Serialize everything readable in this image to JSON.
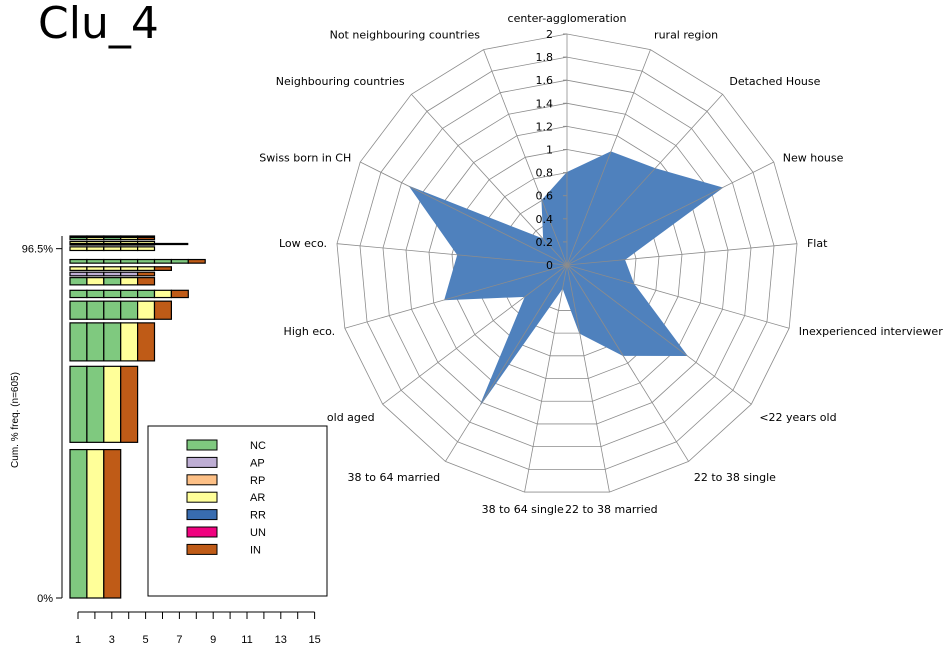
{
  "title": "Clu_4",
  "chart_data": [
    {
      "type": "bar",
      "subtype": "sequence-index-plot",
      "ylabel": "Cum. % freq. (n=605)",
      "y_ticks": [
        "0%",
        "96.5%"
      ],
      "x_ticks": [
        "1",
        "3",
        "5",
        "7",
        "9",
        "11",
        "13",
        "15"
      ],
      "xlim": [
        0,
        15
      ],
      "legend": {
        "placement": "bottom-right",
        "entries": [
          {
            "code": "NC",
            "color": "#7fc97f"
          },
          {
            "code": "AP",
            "color": "#beaed4"
          },
          {
            "code": "RP",
            "color": "#fdc086"
          },
          {
            "code": "AR",
            "color": "#ffff99"
          },
          {
            "code": "RR",
            "color": "#386cb0"
          },
          {
            "code": "UN",
            "color": "#f0027f"
          },
          {
            "code": "IN",
            "color": "#bf5b17"
          }
        ]
      },
      "sequences": [
        {
          "cum_from": 0.0,
          "cum_to": 41.0,
          "states": [
            "NC",
            "AR",
            "IN"
          ]
        },
        {
          "cum_from": 43.0,
          "cum_to": 64.0,
          "states": [
            "NC",
            "NC",
            "AR",
            "IN"
          ]
        },
        {
          "cum_from": 65.5,
          "cum_to": 76.0,
          "states": [
            "NC",
            "NC",
            "NC",
            "AR",
            "IN"
          ]
        },
        {
          "cum_from": 77.0,
          "cum_to": 82.0,
          "states": [
            "NC",
            "NC",
            "NC",
            "NC",
            "AR",
            "IN"
          ]
        },
        {
          "cum_from": 83.0,
          "cum_to": 85.0,
          "states": [
            "NC",
            "NC",
            "NC",
            "NC",
            "NC",
            "AR",
            "IN"
          ]
        },
        {
          "cum_from": 86.5,
          "cum_to": 88.5,
          "states": [
            "NC",
            "AR",
            "NC",
            "AR",
            "IN"
          ]
        },
        {
          "cum_from": 89.0,
          "cum_to": 90.0,
          "states": [
            "AP",
            "AP",
            "AP",
            "AP",
            "IN"
          ]
        },
        {
          "cum_from": 90.5,
          "cum_to": 91.5,
          "states": [
            "AR",
            "AR",
            "AR",
            "AR",
            "AR",
            "IN"
          ]
        },
        {
          "cum_from": 92.5,
          "cum_to": 93.5,
          "states": [
            "NC",
            "NC",
            "NC",
            "NC",
            "NC",
            "NC",
            "NC",
            "IN"
          ]
        },
        {
          "cum_from": 96.0,
          "cum_to": 97.0,
          "states": [
            "AR",
            "AR",
            "AR",
            "AR",
            "AR"
          ]
        },
        {
          "cum_from": 97.5,
          "cum_to": 98.5,
          "states": [
            "AR",
            "AR",
            "AR",
            "AR",
            "AR"
          ]
        },
        {
          "cum_from": 99.0,
          "cum_to": 100.0,
          "states": [
            "NC",
            "AR",
            "NC",
            "AR",
            "IN"
          ]
        }
      ]
    },
    {
      "type": "radar",
      "rlim": [
        0,
        2
      ],
      "r_ticks": [
        "0",
        "0.2",
        "0.4",
        "0.6",
        "0.8",
        "1",
        "1.2",
        "1.4",
        "1.6",
        "1.8",
        "2"
      ],
      "fill_color": "#4f81bd",
      "axes": [
        {
          "label": "center-agglomeration",
          "value": 0.8
        },
        {
          "label": "rural region",
          "value": 1.05
        },
        {
          "label": "Detached House",
          "value": 1.13
        },
        {
          "label": "New house",
          "value": 1.5
        },
        {
          "label": "Flat",
          "value": 0.5
        },
        {
          "label": "Inexperienced interviewer",
          "value": 0.6
        },
        {
          "label": "<22 years old",
          "value": 1.3
        },
        {
          "label": "22 to 38 single",
          "value": 0.92
        },
        {
          "label": "22 to 38 married",
          "value": 0.6
        },
        {
          "label": "38 to 64 single",
          "value": 0.2
        },
        {
          "label": "38 to 64 married",
          "value": 1.42
        },
        {
          "label": "old aged",
          "value": 0.45
        },
        {
          "label": "High eco.",
          "value": 1.1
        },
        {
          "label": "Low eco.",
          "value": 0.95
        },
        {
          "label": "Swiss born in CH",
          "value": 1.52
        },
        {
          "label": "Neighbouring countries",
          "value": 0.3
        },
        {
          "label": "Not neighbouring countries",
          "value": 0.6
        }
      ]
    }
  ]
}
